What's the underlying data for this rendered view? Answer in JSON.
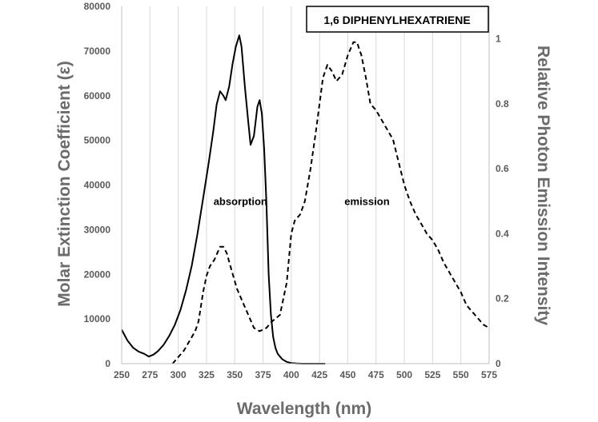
{
  "chart_data": {
    "type": "line",
    "title": "1,6 DIPHENYLHEXATRIENE",
    "xlabel": "Wavelength (nm)",
    "ylabel": "Molar Extinction Coefficient  (ε)",
    "y2label": "Relative Photon Emission Intensity",
    "xlim": [
      250,
      575
    ],
    "ylim": [
      0,
      80000
    ],
    "y2lim": [
      0,
      1.1
    ],
    "x_ticks": [
      "250",
      "275",
      "300",
      "325",
      "350",
      "375",
      "400",
      "425",
      "450",
      "475",
      "500",
      "525",
      "550",
      "575"
    ],
    "y_ticks": [
      "0",
      "10000",
      "20000",
      "30000",
      "40000",
      "50000",
      "60000",
      "70000",
      "80000"
    ],
    "y2_ticks": [
      "0",
      "0.2",
      "0.4",
      "0.6",
      "0.8",
      "1"
    ],
    "annotations": [
      {
        "text": "absorption",
        "x": 355,
        "y": 35500
      },
      {
        "text": "emission",
        "x": 467,
        "y": 35500
      }
    ],
    "series": [
      {
        "name": "absorption",
        "axis": "left",
        "style": "solid",
        "points": [
          [
            250,
            7600
          ],
          [
            255,
            5200
          ],
          [
            260,
            3600
          ],
          [
            265,
            2700
          ],
          [
            270,
            2200
          ],
          [
            274,
            1600
          ],
          [
            278,
            2000
          ],
          [
            282,
            2800
          ],
          [
            287,
            4200
          ],
          [
            292,
            6200
          ],
          [
            297,
            8700
          ],
          [
            302,
            12000
          ],
          [
            307,
            16500
          ],
          [
            312,
            22000
          ],
          [
            317,
            29000
          ],
          [
            322,
            37000
          ],
          [
            327,
            45000
          ],
          [
            331,
            52000
          ],
          [
            334,
            58000
          ],
          [
            337,
            61000
          ],
          [
            340,
            60000
          ],
          [
            342,
            59000
          ],
          [
            345,
            62000
          ],
          [
            348,
            67000
          ],
          [
            351,
            71000
          ],
          [
            354,
            73500
          ],
          [
            356,
            71000
          ],
          [
            359,
            62000
          ],
          [
            362,
            54000
          ],
          [
            364,
            49000
          ],
          [
            367,
            51000
          ],
          [
            370,
            57500
          ],
          [
            372,
            59000
          ],
          [
            374,
            56000
          ],
          [
            376,
            48000
          ],
          [
            378,
            36000
          ],
          [
            380,
            20000
          ],
          [
            382,
            11000
          ],
          [
            384,
            6000
          ],
          [
            386,
            3500
          ],
          [
            388,
            2200
          ],
          [
            392,
            1000
          ],
          [
            396,
            400
          ],
          [
            400,
            150
          ],
          [
            405,
            50
          ],
          [
            410,
            0
          ],
          [
            430,
            0
          ]
        ]
      },
      {
        "name": "emission",
        "axis": "right",
        "style": "dashed",
        "points": [
          [
            295,
            0.0
          ],
          [
            300,
            0.02
          ],
          [
            305,
            0.04
          ],
          [
            310,
            0.07
          ],
          [
            315,
            0.1
          ],
          [
            318,
            0.13
          ],
          [
            322,
            0.22
          ],
          [
            325,
            0.27
          ],
          [
            328,
            0.3
          ],
          [
            332,
            0.32
          ],
          [
            337,
            0.36
          ],
          [
            340,
            0.36
          ],
          [
            343,
            0.34
          ],
          [
            347,
            0.29
          ],
          [
            352,
            0.23
          ],
          [
            357,
            0.19
          ],
          [
            362,
            0.15
          ],
          [
            367,
            0.11
          ],
          [
            372,
            0.1
          ],
          [
            378,
            0.11
          ],
          [
            383,
            0.13
          ],
          [
            390,
            0.15
          ],
          [
            396,
            0.25
          ],
          [
            400,
            0.4
          ],
          [
            403,
            0.44
          ],
          [
            408,
            0.46
          ],
          [
            412,
            0.5
          ],
          [
            417,
            0.6
          ],
          [
            422,
            0.72
          ],
          [
            428,
            0.88
          ],
          [
            432,
            0.92
          ],
          [
            436,
            0.9
          ],
          [
            440,
            0.87
          ],
          [
            445,
            0.89
          ],
          [
            450,
            0.95
          ],
          [
            455,
            0.99
          ],
          [
            458,
            0.99
          ],
          [
            462,
            0.95
          ],
          [
            466,
            0.88
          ],
          [
            470,
            0.8
          ],
          [
            475,
            0.78
          ],
          [
            480,
            0.75
          ],
          [
            485,
            0.72
          ],
          [
            490,
            0.69
          ],
          [
            495,
            0.62
          ],
          [
            500,
            0.55
          ],
          [
            505,
            0.5
          ],
          [
            510,
            0.46
          ],
          [
            515,
            0.43
          ],
          [
            520,
            0.4
          ],
          [
            525,
            0.38
          ],
          [
            530,
            0.35
          ],
          [
            535,
            0.31
          ],
          [
            540,
            0.28
          ],
          [
            545,
            0.25
          ],
          [
            550,
            0.22
          ],
          [
            555,
            0.18
          ],
          [
            560,
            0.16
          ],
          [
            565,
            0.14
          ],
          [
            570,
            0.12
          ],
          [
            575,
            0.11
          ]
        ]
      }
    ]
  }
}
